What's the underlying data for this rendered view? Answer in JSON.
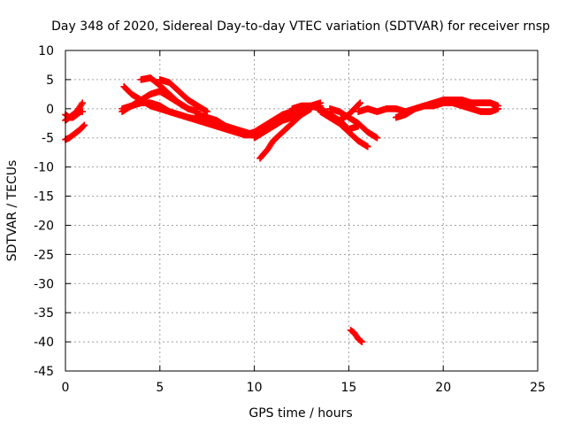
{
  "chart_data": {
    "type": "scatter",
    "title": "Day 348 of 2020, Sidereal Day-to-day VTEC variation (SDTVAR) for receiver rnsp",
    "xlabel": "GPS time / hours",
    "ylabel": "SDTVAR / TECUs",
    "xlim": [
      0,
      25
    ],
    "ylim": [
      -45,
      10
    ],
    "xticks": [
      0,
      5,
      10,
      15,
      20,
      25
    ],
    "yticks": [
      10,
      5,
      0,
      -5,
      -10,
      -15,
      -20,
      -25,
      -30,
      -35,
      -40,
      -45
    ],
    "grid": true,
    "marker": "plus",
    "color": "#ff0000",
    "series": [
      {
        "name": "s1",
        "x": [
          0.0,
          0.2,
          0.4,
          0.6,
          0.8,
          0.9
        ],
        "y": [
          -1.0,
          -1.5,
          -1.5,
          -1.0,
          -0.5,
          -0.5
        ]
      },
      {
        "name": "s2",
        "x": [
          0.0,
          0.2,
          0.4,
          0.6,
          0.8,
          0.9
        ],
        "y": [
          -2.0,
          -1.5,
          -1.0,
          -0.5,
          0.5,
          1.0
        ]
      },
      {
        "name": "s3",
        "x": [
          0.0,
          0.2,
          0.4,
          0.6,
          0.8,
          1.0
        ],
        "y": [
          -5.3,
          -5.0,
          -4.5,
          -4.0,
          -3.5,
          -2.8
        ]
      },
      {
        "name": "s4",
        "x": [
          3.1,
          3.5,
          4.0,
          4.5,
          5.0,
          5.5,
          6.0,
          6.5,
          7.0,
          7.5
        ],
        "y": [
          3.8,
          2.5,
          1.5,
          0.5,
          0.0,
          -0.5,
          -1.0,
          -1.5,
          -1.8,
          -2.0
        ]
      },
      {
        "name": "s5",
        "x": [
          4.0,
          4.5,
          5.0,
          5.5,
          6.0,
          6.5,
          7.0
        ],
        "y": [
          5.0,
          5.3,
          4.0,
          2.5,
          1.0,
          0.0,
          -0.5
        ]
      },
      {
        "name": "s6",
        "x": [
          5.0,
          5.5,
          6.0,
          6.5,
          7.0,
          7.5
        ],
        "y": [
          5.0,
          4.5,
          3.0,
          1.5,
          0.5,
          -0.5
        ]
      },
      {
        "name": "s7",
        "x": [
          3.0,
          3.5,
          4.0,
          4.5,
          5.0,
          5.5,
          6.0,
          6.5
        ],
        "y": [
          -0.5,
          0.5,
          1.5,
          2.5,
          3.0,
          2.0,
          1.0,
          0.0
        ]
      },
      {
        "name": "s8",
        "x": [
          3.0,
          3.5,
          4.0,
          4.5,
          5.0,
          5.5,
          6.0,
          6.5,
          7.0,
          7.5,
          8.0,
          8.5,
          9.0,
          9.5,
          10.0
        ],
        "y": [
          0.0,
          0.5,
          1.0,
          1.0,
          0.5,
          -0.5,
          -1.0,
          -1.5,
          -2.0,
          -2.5,
          -3.0,
          -3.5,
          -4.0,
          -4.5,
          -4.5
        ]
      },
      {
        "name": "s9",
        "x": [
          7.0,
          7.5,
          8.0,
          8.5,
          9.0,
          9.5,
          10.0
        ],
        "y": [
          -1.0,
          -1.5,
          -2.0,
          -3.0,
          -3.5,
          -4.0,
          -4.5
        ]
      },
      {
        "name": "s10",
        "x": [
          9.5,
          10.0,
          10.5,
          11.0,
          11.5,
          12.0,
          12.5,
          13.0,
          13.5
        ],
        "y": [
          -4.5,
          -4.0,
          -3.0,
          -2.0,
          -1.0,
          -0.5,
          0.0,
          0.5,
          0.5
        ]
      },
      {
        "name": "s11",
        "x": [
          10.3,
          10.7,
          11.0,
          11.5,
          12.0,
          12.5,
          13.0
        ],
        "y": [
          -8.5,
          -7.0,
          -5.5,
          -4.0,
          -2.5,
          -1.0,
          0.0
        ]
      },
      {
        "name": "s12",
        "x": [
          10.0,
          10.5,
          11.0,
          11.5,
          12.0,
          12.5,
          13.0,
          13.5
        ],
        "y": [
          -5.0,
          -4.0,
          -3.0,
          -2.0,
          -1.5,
          -0.5,
          0.5,
          1.0
        ]
      },
      {
        "name": "s13",
        "x": [
          12.0,
          12.5,
          13.0,
          13.5,
          14.0,
          14.5,
          15.0,
          15.5
        ],
        "y": [
          0.0,
          0.5,
          0.5,
          0.0,
          -1.0,
          -2.0,
          -3.5,
          -3.0
        ]
      },
      {
        "name": "s14",
        "x": [
          13.5,
          14.0,
          14.5,
          15.0,
          15.5,
          16.0
        ],
        "y": [
          -0.5,
          -1.5,
          -2.5,
          -4.0,
          -5.5,
          -6.5
        ]
      },
      {
        "name": "s15",
        "x": [
          14.0,
          14.5,
          15.0,
          15.5,
          16.0,
          16.5
        ],
        "y": [
          0.0,
          -0.5,
          -1.5,
          -2.5,
          -4.0,
          -5.0
        ]
      },
      {
        "name": "s16",
        "x": [
          14.5,
          15.0,
          15.3,
          15.6
        ],
        "y": [
          -2.0,
          -1.0,
          0.0,
          1.0
        ]
      },
      {
        "name": "s17",
        "x": [
          15.5,
          16.0,
          16.5,
          17.0,
          17.5,
          18.0,
          18.5,
          19.0,
          19.5,
          20.0,
          20.5,
          21.0,
          21.5,
          22.0,
          22.5,
          22.9
        ],
        "y": [
          -0.5,
          0.0,
          -0.5,
          0.0,
          0.0,
          -0.5,
          0.0,
          0.5,
          1.0,
          1.5,
          1.5,
          1.5,
          1.0,
          1.0,
          1.0,
          0.5
        ]
      },
      {
        "name": "s18",
        "x": [
          17.5,
          18.0,
          18.5,
          19.0,
          19.5,
          20.0,
          20.5,
          21.0,
          21.5,
          22.0,
          22.5,
          22.9
        ],
        "y": [
          -1.5,
          -1.0,
          0.0,
          0.5,
          0.5,
          1.0,
          1.0,
          0.5,
          0.0,
          -0.5,
          -0.5,
          0.0
        ]
      },
      {
        "name": "s19",
        "x": [
          15.1,
          15.3,
          15.5,
          15.7
        ],
        "y": [
          -38.0,
          -38.5,
          -39.5,
          -40.0
        ]
      }
    ]
  }
}
